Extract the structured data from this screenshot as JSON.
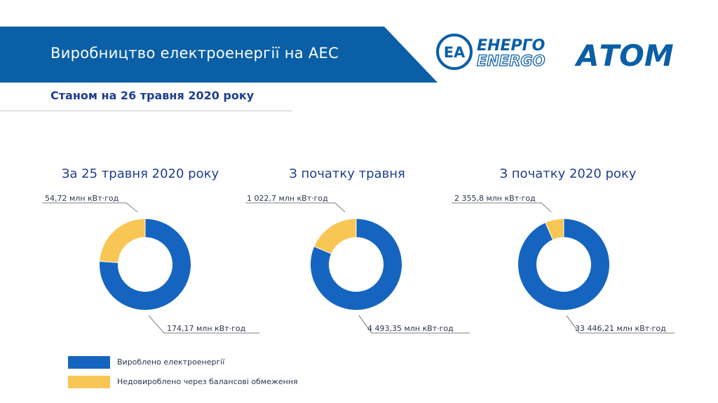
{
  "header": {
    "title": "Виробництво електроенергії на АЕС",
    "subtitle": "Станом на 26 травня 2020 року",
    "logo": {
      "emblem": "ЕА",
      "top_word": "ЕНЕРГО",
      "bottom_word": "ENERGO",
      "big_word": "АТОМ"
    }
  },
  "colors": {
    "header_blue": "#0a5fa6",
    "produced": "#1565c0",
    "not_produced": "#f8c654",
    "text_dark": "#2a3550",
    "title_blue": "#1e3f8f"
  },
  "legend": [
    {
      "label": "Вироблено електроенергії",
      "color": "#1565c0"
    },
    {
      "label": "Недовироблено через балансові обмеження",
      "color": "#f8c654"
    }
  ],
  "chart_data": [
    {
      "type": "pie",
      "title": "За 25 травня 2020 року",
      "series": [
        {
          "name": "Вироблено електроенергії",
          "value": 174.17,
          "label": "174,17 млн кВт·год"
        },
        {
          "name": "Недовироблено через балансові обмеження",
          "value": 54.72,
          "label": "54,72 млн кВт·год"
        }
      ]
    },
    {
      "type": "pie",
      "title": "З початку травня",
      "series": [
        {
          "name": "Вироблено електроенергії",
          "value": 4493.35,
          "label": "4 493,35 млн кВт·год"
        },
        {
          "name": "Недовироблено через балансові обмеження",
          "value": 1022.7,
          "label": "1 022,7 млн кВт·год"
        }
      ]
    },
    {
      "type": "pie",
      "title": "З початку 2020 року",
      "series": [
        {
          "name": "Вироблено електроенергії",
          "value": 33446.21,
          "label": "33 446,21 млн кВт·год"
        },
        {
          "name": "Недовироблено через балансові обмеження",
          "value": 2355.8,
          "label": "2 355,8 млн кВт·год"
        }
      ]
    }
  ]
}
